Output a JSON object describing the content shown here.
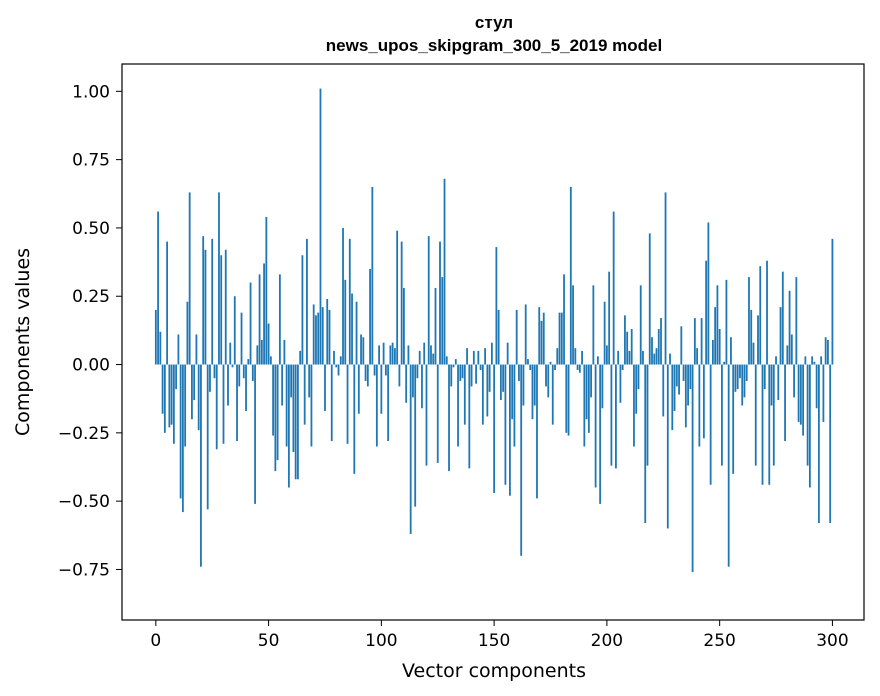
{
  "chart_data": {
    "type": "bar",
    "title": "стул",
    "subtitle": "news_upos_skipgram_300_5_2019 model",
    "xlabel": "Vector components",
    "ylabel": "Components values",
    "xlim": [
      -15,
      314
    ],
    "ylim": [
      -0.935,
      1.1
    ],
    "xticks": [
      0,
      50,
      100,
      150,
      200,
      250,
      300
    ],
    "yticks": [
      -0.75,
      -0.5,
      -0.25,
      0.0,
      0.25,
      0.5,
      0.75,
      1.0
    ],
    "ytick_labels": [
      "−0.75",
      "−0.50",
      "−0.25",
      "0.00",
      "0.25",
      "0.50",
      "0.75",
      "1.00"
    ],
    "xtick_labels": [
      "0",
      "50",
      "100",
      "150",
      "200",
      "250",
      "300"
    ],
    "bar_color": "#1f77b4",
    "x_start": 0,
    "values": [
      0.2,
      0.56,
      0.12,
      -0.18,
      -0.25,
      0.45,
      -0.23,
      -0.22,
      -0.29,
      -0.09,
      0.11,
      -0.49,
      -0.54,
      -0.3,
      0.23,
      0.63,
      -0.2,
      -0.13,
      0.11,
      -0.24,
      -0.74,
      0.47,
      0.42,
      -0.53,
      -0.1,
      0.46,
      -0.05,
      -0.31,
      0.63,
      0.4,
      -0.29,
      0.42,
      -0.15,
      0.08,
      -0.01,
      0.25,
      -0.28,
      -0.08,
      0.19,
      -0.05,
      -0.17,
      0.02,
      0.3,
      -0.06,
      -0.51,
      0.07,
      0.33,
      0.09,
      0.37,
      0.54,
      0.15,
      0.03,
      -0.26,
      -0.39,
      -0.35,
      0.33,
      -0.15,
      0.09,
      -0.3,
      -0.45,
      -0.12,
      -0.32,
      -0.42,
      -0.42,
      0.05,
      0.4,
      -0.22,
      0.46,
      -0.12,
      -0.3,
      0.22,
      0.18,
      0.19,
      1.01,
      0.21,
      -0.17,
      0.24,
      0.2,
      -0.28,
      0.05,
      -0.01,
      -0.04,
      0.03,
      0.5,
      0.31,
      -0.29,
      0.46,
      0.26,
      -0.4,
      0.23,
      -0.18,
      0.11,
      0.1,
      -0.06,
      -0.08,
      0.35,
      0.65,
      -0.04,
      -0.3,
      0.07,
      -0.18,
      0.08,
      -0.04,
      -0.28,
      0.07,
      0.08,
      0.06,
      0.49,
      -0.08,
      0.45,
      0.28,
      -0.14,
      0.07,
      -0.62,
      -0.12,
      -0.52,
      -0.05,
      0.05,
      -0.16,
      0.08,
      -0.37,
      0.47,
      0.07,
      0.04,
      0.28,
      -0.36,
      0.45,
      0.32,
      0.68,
      0.03,
      -0.39,
      -0.08,
      -0.01,
      0.02,
      -0.3,
      -0.06,
      -0.05,
      -0.22,
      0.06,
      -0.38,
      -0.08,
      0.05,
      -0.07,
      0.05,
      -0.02,
      -0.22,
      0.06,
      -0.19,
      -0.1,
      0.08,
      -0.47,
      0.43,
      0.2,
      -0.13,
      -0.1,
      -0.44,
      0.08,
      -0.48,
      -0.2,
      -0.3,
      0.2,
      -0.06,
      -0.7,
      -0.15,
      0.22,
      0.02,
      -0.02,
      -0.2,
      -0.15,
      -0.49,
      0.21,
      0.16,
      0.19,
      -0.08,
      -0.12,
      0.01,
      -0.22,
      -0.02,
      0.06,
      0.19,
      0.19,
      0.33,
      -0.25,
      -0.26,
      0.65,
      0.29,
      0.06,
      -0.02,
      -0.03,
      0.05,
      -0.3,
      -0.2,
      -0.25,
      -0.12,
      0.29,
      -0.45,
      0.03,
      -0.51,
      -0.16,
      0.23,
      0.07,
      0.34,
      -0.37,
      0.56,
      -0.38,
      0.05,
      -0.14,
      -0.02,
      0.18,
      0.12,
      0.05,
      0.13,
      -0.3,
      -0.18,
      -0.09,
      0.29,
      0.05,
      -0.58,
      -0.37,
      0.48,
      0.1,
      0.04,
      0.06,
      0.13,
      0.17,
      -0.19,
      0.63,
      -0.6,
      0.04,
      -0.24,
      -0.17,
      -0.08,
      -0.11,
      0.14,
      -0.06,
      -0.23,
      -0.15,
      -0.09,
      -0.76,
      0.17,
      0.06,
      -0.3,
      0.17,
      -0.27,
      0.38,
      0.52,
      -0.44,
      0.09,
      0.21,
      0.29,
      0.13,
      -0.37,
      0.01,
      0.31,
      -0.74,
      0.1,
      -0.4,
      -0.1,
      -0.09,
      -0.05,
      -0.15,
      -0.12,
      -0.06,
      0.32,
      0.2,
      0.08,
      -0.37,
      0.18,
      0.36,
      -0.44,
      -0.09,
      0.38,
      -0.44,
      -0.15,
      -0.37,
      0.03,
      -0.13,
      0.21,
      0.34,
      -0.28,
      0.07,
      0.27,
      0.11,
      -0.12,
      0.32,
      -0.21,
      -0.22,
      -0.26,
      0.03,
      -0.37,
      -0.45,
      0.03,
      0.01,
      -0.16,
      -0.58,
      0.03,
      -0.21,
      0.1,
      0.09,
      -0.58,
      0.46
    ]
  }
}
